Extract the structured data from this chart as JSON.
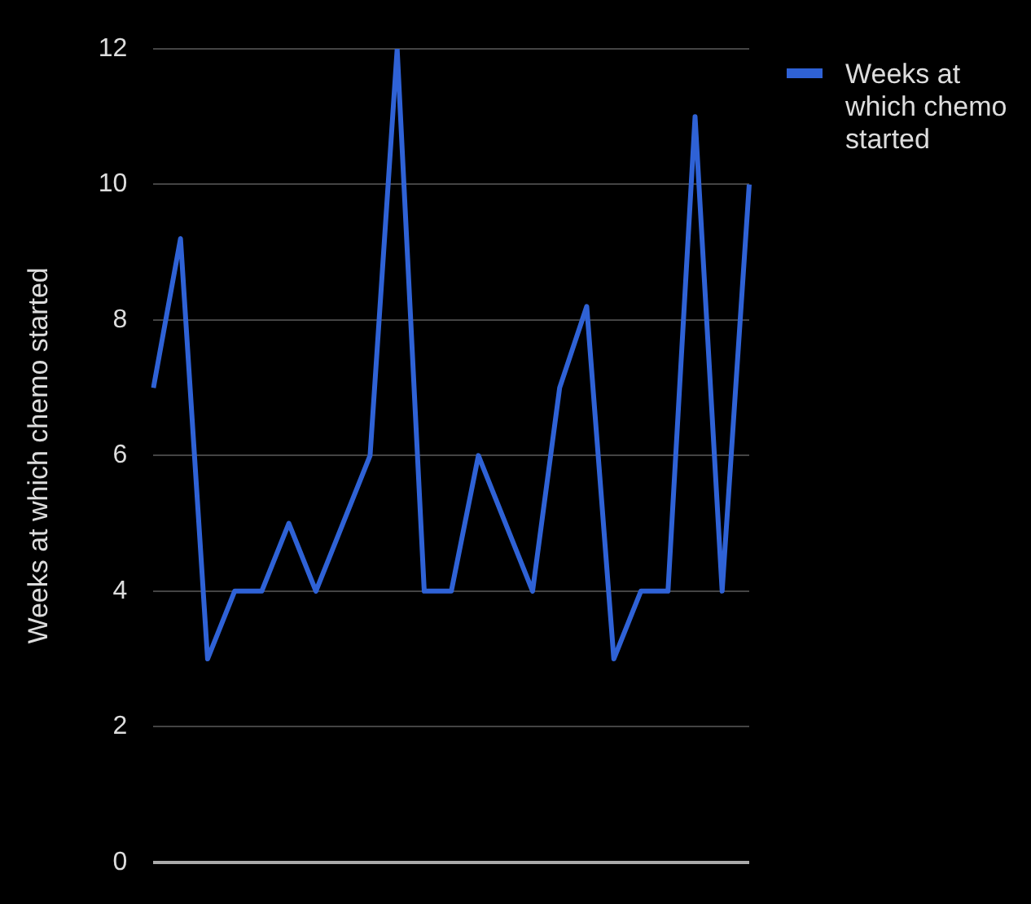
{
  "chart_data": {
    "type": "line",
    "ylabel": "Weeks at which chemo started",
    "categories": [
      null,
      null,
      null,
      null,
      null,
      null,
      null,
      null,
      null,
      null,
      null,
      null,
      null,
      null,
      null,
      null,
      null,
      null,
      null,
      null,
      null,
      null,
      null
    ],
    "series": [
      {
        "name": "Weeks at which chemo started",
        "color": "#2f62d6",
        "values": [
          7,
          9.2,
          3,
          4,
          4,
          5,
          4,
          5,
          6,
          12,
          4,
          4,
          6,
          5,
          4,
          7,
          8.2,
          3,
          4,
          4,
          11,
          4,
          10
        ]
      }
    ],
    "ylim": [
      0,
      12
    ],
    "yticks": [
      0,
      2,
      4,
      6,
      8,
      10,
      12
    ],
    "grid": "y",
    "legend": "top right",
    "marker": "none",
    "line_style": "solid",
    "tick_labels": "y"
  }
}
